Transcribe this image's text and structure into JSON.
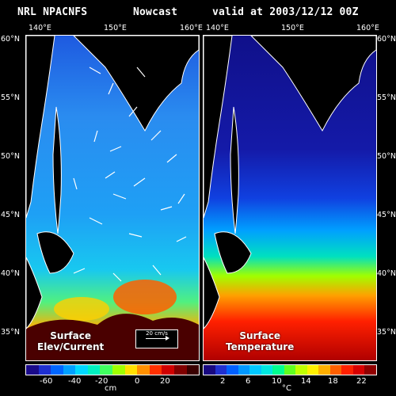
{
  "header": {
    "left": "NRL NPACNFS",
    "middle": "Nowcast",
    "right": "valid at 2003/12/12 00Z"
  },
  "longitudes": [
    "140°E",
    "150°E",
    "160°E"
  ],
  "latitudes": [
    "60°N",
    "55°N",
    "50°N",
    "45°N",
    "40°N",
    "35°N"
  ],
  "left_panel": {
    "label_line1": "Surface",
    "label_line2": "Elev/Current",
    "scale_text": "20 cm/s",
    "colorbar_ticks": [
      "-60",
      "-40",
      "-20",
      "0",
      "20"
    ],
    "colorbar_unit": "cm",
    "colors": [
      "#1a0a8a",
      "#1e2fd0",
      "#0066ff",
      "#00a0ff",
      "#00d8ff",
      "#00f0c0",
      "#40ff60",
      "#a0ff00",
      "#ffe000",
      "#ff9000",
      "#ff3000",
      "#d00000",
      "#800000",
      "#3a0000"
    ]
  },
  "right_panel": {
    "label_line1": "Surface",
    "label_line2": "Temperature",
    "colorbar_ticks": [
      "2",
      "6",
      "10",
      "14",
      "18",
      "22"
    ],
    "colorbar_unit": "°C",
    "colors": [
      "#180880",
      "#2030d0",
      "#0060ff",
      "#0098ff",
      "#00c8ff",
      "#00e8e0",
      "#00ff90",
      "#60ff20",
      "#c0ff00",
      "#fff000",
      "#ffb000",
      "#ff6000",
      "#ff2000",
      "#d80000",
      "#900000"
    ]
  }
}
